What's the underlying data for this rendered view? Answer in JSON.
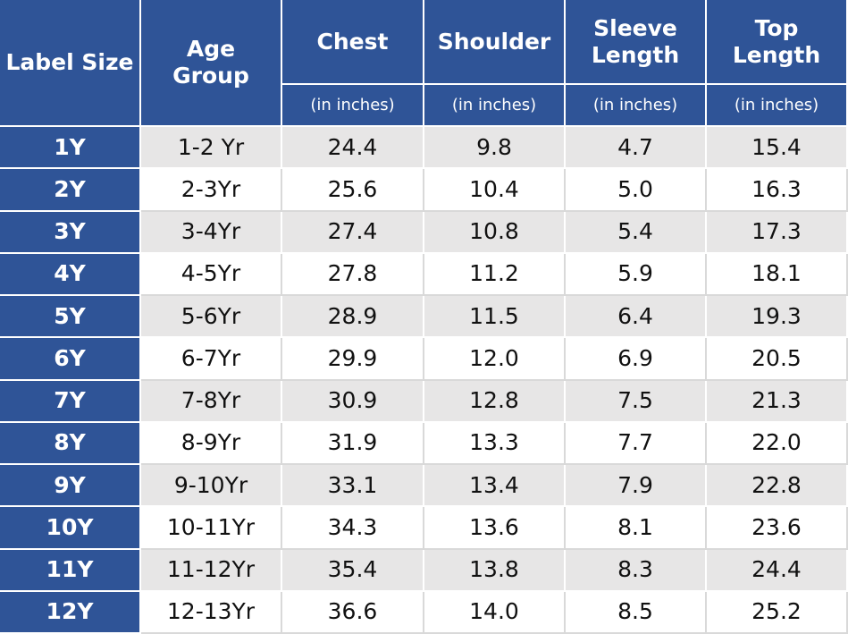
{
  "table": {
    "columns": [
      {
        "title": "Label Size"
      },
      {
        "title": "Age Group"
      },
      {
        "title": "Chest",
        "unit": "(in inches)"
      },
      {
        "title": "Shoulder",
        "unit": "(in inches)"
      },
      {
        "title": "Sleeve Length",
        "unit": "(in inches)"
      },
      {
        "title": "Top Length",
        "unit": "(in inches)"
      }
    ],
    "rows": [
      [
        "1Y",
        "1-2 Yr",
        "24.4",
        "9.8",
        "4.7",
        "15.4"
      ],
      [
        "2Y",
        "2-3Yr",
        "25.6",
        "10.4",
        "5.0",
        "16.3"
      ],
      [
        "3Y",
        "3-4Yr",
        "27.4",
        "10.8",
        "5.4",
        "17.3"
      ],
      [
        "4Y",
        "4-5Yr",
        "27.8",
        "11.2",
        "5.9",
        "18.1"
      ],
      [
        "5Y",
        "5-6Yr",
        "28.9",
        "11.5",
        "6.4",
        "19.3"
      ],
      [
        "6Y",
        "6-7Yr",
        "29.9",
        "12.0",
        "6.9",
        "20.5"
      ],
      [
        "7Y",
        "7-8Yr",
        "30.9",
        "12.8",
        "7.5",
        "21.3"
      ],
      [
        "8Y",
        "8-9Yr",
        "31.9",
        "13.3",
        "7.7",
        "22.0"
      ],
      [
        "9Y",
        "9-10Yr",
        "33.1",
        "13.4",
        "7.9",
        "22.8"
      ],
      [
        "10Y",
        "10-11Yr",
        "34.3",
        "13.6",
        "8.1",
        "23.6"
      ],
      [
        "11Y",
        "11-12Yr",
        "35.4",
        "13.8",
        "8.3",
        "24.4"
      ],
      [
        "12Y",
        "12-13Yr",
        "36.6",
        "14.0",
        "8.5",
        "25.2"
      ]
    ]
  }
}
